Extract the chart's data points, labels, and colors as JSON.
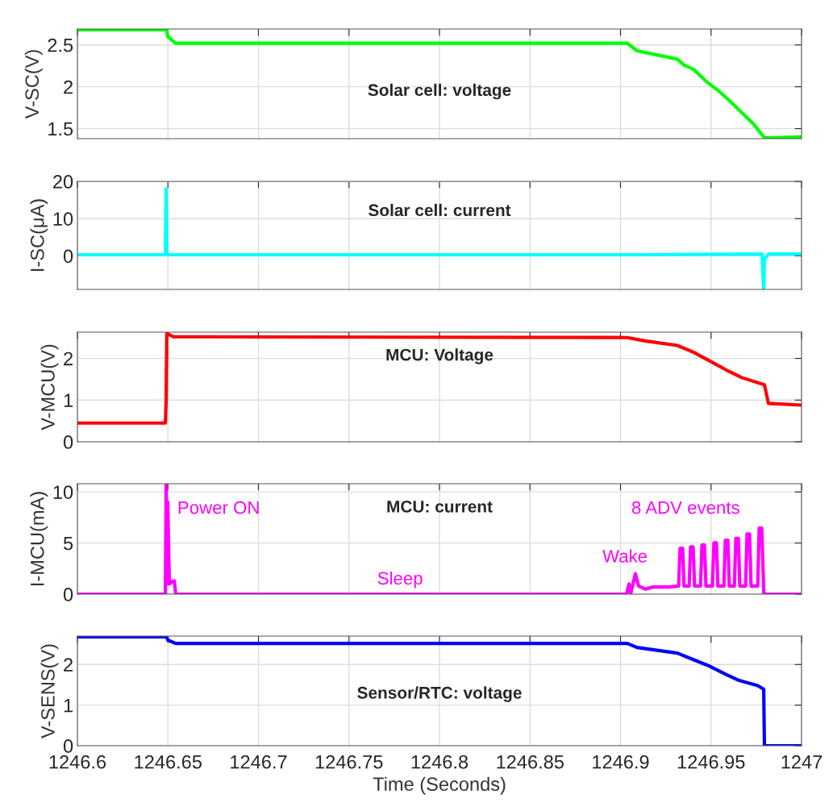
{
  "chart_data": [
    {
      "type": "line",
      "title": "Solar cell: voltage",
      "ylabel": "V-SC(V)",
      "xlim": [
        1246.6,
        1247
      ],
      "xticks": [
        1246.6,
        1246.65,
        1246.7,
        1246.75,
        1246.8,
        1246.85,
        1246.9,
        1246.95,
        1247
      ],
      "ylim": [
        1.38,
        2.69
      ],
      "yticks": [
        1.5,
        2,
        2.5
      ],
      "grid": true,
      "tick_labels": "y",
      "series": [
        {
          "color": "#00ff00",
          "x": [
            1246.6,
            1246.6494,
            1246.6499,
            1246.6543,
            1246.9038,
            1246.9091,
            1246.9314,
            1246.935,
            1246.9403,
            1246.947,
            1246.9537,
            1246.9604,
            1246.967,
            1246.9737,
            1246.9795,
            1247
          ],
          "values": [
            2.68,
            2.68,
            2.6,
            2.52,
            2.52,
            2.43,
            2.33,
            2.26,
            2.21,
            2.07,
            1.96,
            1.83,
            1.69,
            1.55,
            1.39,
            1.4
          ]
        }
      ]
    },
    {
      "type": "line",
      "title": "Solar cell: current",
      "ylabel": "I-SC(μA)",
      "xlim": [
        1246.6,
        1247
      ],
      "xticks": [
        1246.6,
        1246.65,
        1246.7,
        1246.75,
        1246.8,
        1246.85,
        1246.9,
        1246.95,
        1247
      ],
      "ylim": [
        -9,
        20
      ],
      "yticks": [
        0,
        10,
        20
      ],
      "grid": true,
      "tick_labels": "y",
      "series": [
        {
          "color": "#00ffff",
          "x": [
            1246.6,
            1246.6486,
            1246.649,
            1246.6494,
            1246.6499,
            1246.9,
            1246.9782,
            1246.9791,
            1246.9795,
            1246.9817,
            1247
          ],
          "values": [
            0.3,
            0.3,
            18,
            1,
            0.3,
            0.3,
            0.5,
            -9,
            -1,
            0.5,
            0.5
          ]
        }
      ]
    },
    {
      "type": "line",
      "title": "MCU: Voltage",
      "ylabel": "V-MCU(V)",
      "xlim": [
        1246.6,
        1247
      ],
      "xticks": [
        1246.6,
        1246.65,
        1246.7,
        1246.75,
        1246.8,
        1246.85,
        1246.9,
        1246.95,
        1247
      ],
      "ylim": [
        0,
        2.63
      ],
      "yticks": [
        0,
        1,
        2
      ],
      "grid": true,
      "tick_labels": "y",
      "series": [
        {
          "color": "#ff0000",
          "x": [
            1246.6,
            1246.6486,
            1246.649,
            1246.6494,
            1246.653,
            1246.9038,
            1246.9136,
            1246.9314,
            1246.9403,
            1246.9492,
            1246.9581,
            1246.967,
            1246.9795,
            1246.9817,
            1247
          ],
          "values": [
            0.45,
            0.45,
            1,
            2.6,
            2.52,
            2.5,
            2.42,
            2.31,
            2.15,
            1.94,
            1.73,
            1.54,
            1.37,
            0.92,
            0.88
          ]
        }
      ]
    },
    {
      "type": "line",
      "title": "MCU: current",
      "ylabel": "I-MCU(mA)",
      "xlim": [
        1246.6,
        1247
      ],
      "xticks": [
        1246.6,
        1246.65,
        1246.7,
        1246.75,
        1246.8,
        1246.85,
        1246.9,
        1246.95,
        1247
      ],
      "ylim": [
        0,
        10.8
      ],
      "yticks": [
        0,
        5,
        10
      ],
      "grid": true,
      "tick_labels": "y",
      "annotations": [
        "Power ON",
        "Sleep",
        "Wake",
        "8 ADV events"
      ],
      "series": [
        {
          "color": "#ff00ff",
          "x": [
            1246.6,
            1246.6486,
            1246.649,
            1246.6494,
            1246.6499,
            1246.6508,
            1246.6521,
            1246.6535,
            1246.6543,
            1246.9033,
            1246.9047,
            1246.9056,
            1246.9082,
            1246.91,
            1246.9136,
            1246.918,
            1246.9269,
            1246.9321,
            1246.9329,
            1246.9343,
            1246.9351,
            1246.9379,
            1246.9387,
            1246.9401,
            1246.9409,
            1246.9442,
            1246.945,
            1246.9464,
            1246.9472,
            1246.9508,
            1246.9516,
            1246.953,
            1246.9538,
            1246.9571,
            1246.9579,
            1246.9593,
            1246.9601,
            1246.9629,
            1246.9637,
            1246.9651,
            1246.9659,
            1246.9691,
            1246.9699,
            1246.9713,
            1246.9721,
            1246.9758,
            1246.9766,
            1246.978,
            1246.9792,
            1247
          ],
          "values": [
            0,
            0,
            10.8,
            1,
            9,
            1,
            1.2,
            1.3,
            0,
            0,
            1,
            0,
            2,
            0.8,
            0.5,
            0.7,
            0.7,
            0.8,
            4.49,
            4.49,
            0.8,
            0.8,
            4.62,
            4.62,
            0.8,
            0.8,
            4.8,
            4.8,
            0.8,
            0.8,
            5.01,
            5.01,
            0.8,
            0.8,
            5.28,
            5.28,
            0.8,
            0.8,
            5.46,
            5.46,
            0.8,
            0.8,
            5.88,
            5.88,
            0.8,
            0.8,
            6.46,
            6.46,
            0,
            0
          ]
        }
      ]
    },
    {
      "type": "line",
      "title": "Sensor/RTC: voltage",
      "xlabel": "Time (Seconds)",
      "ylabel": "V-SENS(V)",
      "xlim": [
        1246.6,
        1247
      ],
      "xticks": [
        1246.6,
        1246.65,
        1246.7,
        1246.75,
        1246.8,
        1246.85,
        1246.9,
        1246.95,
        1247
      ],
      "ylim": [
        0,
        2.7
      ],
      "yticks": [
        0,
        1,
        2
      ],
      "grid": true,
      "series": [
        {
          "color": "#0000ff",
          "x": [
            1246.6,
            1246.6494,
            1246.6499,
            1246.6543,
            1246.9038,
            1246.9091,
            1246.9314,
            1246.9403,
            1246.9492,
            1246.9581,
            1246.9648,
            1246.9759,
            1246.9791,
            1246.9795,
            1247
          ],
          "values": [
            2.68,
            2.68,
            2.6,
            2.52,
            2.52,
            2.42,
            2.28,
            2.12,
            1.96,
            1.76,
            1.62,
            1.48,
            1.39,
            0,
            0
          ]
        }
      ]
    }
  ]
}
